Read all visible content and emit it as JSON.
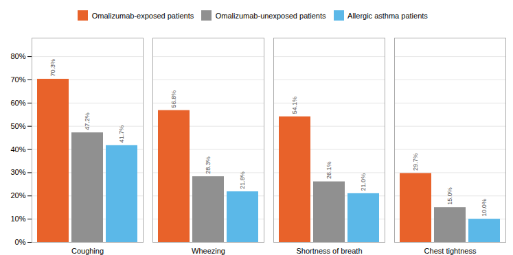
{
  "chart_data": {
    "type": "bar",
    "categories": [
      "Coughing",
      "Wheezing",
      "Shortness of breath",
      "Chest tightness"
    ],
    "series": [
      {
        "name": "Omalizumab-exposed patients",
        "color": "#E8622A",
        "values": [
          70.3,
          56.8,
          54.1,
          29.7
        ],
        "value_labels": [
          "70.3%",
          "56.8%",
          "54.1%",
          "29.7%"
        ]
      },
      {
        "name": "Omalizumab-unexposed patients",
        "color": "#909090",
        "values": [
          47.2,
          28.3,
          26.1,
          15.0
        ],
        "value_labels": [
          "47.2%",
          "28.3%",
          "26.1%",
          "15.0%"
        ]
      },
      {
        "name": "Allergic asthma patients",
        "color": "#5BB8E8",
        "values": [
          41.7,
          21.8,
          21.0,
          10.0
        ],
        "value_labels": [
          "41.7%",
          "21.8%",
          "21.0%",
          "10.0%"
        ]
      }
    ],
    "ylim": [
      0,
      88
    ],
    "yticks": [
      {
        "value": 0,
        "label": "0%"
      },
      {
        "value": 10,
        "label": "10%"
      },
      {
        "value": 20,
        "label": "20%"
      },
      {
        "value": 30,
        "label": "30%"
      },
      {
        "value": 40,
        "label": "40%"
      },
      {
        "value": 50,
        "label": "50%"
      },
      {
        "value": 60,
        "label": "60%"
      },
      {
        "value": 70,
        "label": "70%"
      },
      {
        "value": 80,
        "label": "80%"
      }
    ],
    "grid": true,
    "data_labels": true,
    "legend": "top"
  }
}
